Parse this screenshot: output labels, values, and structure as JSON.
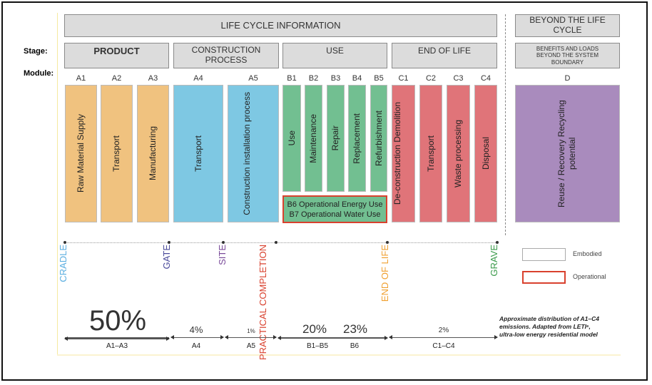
{
  "header": {
    "lifecycle": "LIFE CYCLE INFORMATION",
    "beyond": "BEYOND THE LIFE CYCLE"
  },
  "labels": {
    "stage": "Stage:",
    "module": "Module:"
  },
  "stages": [
    "PRODUCT",
    "CONSTRUCTION PROCESS",
    "USE",
    "END OF LIFE",
    "BENEFITS AND LOADS BEYOND THE SYSTEM BOUNDARY"
  ],
  "modules": [
    {
      "code": "A1",
      "name": "Raw Material Supply",
      "color": "#f0c27f"
    },
    {
      "code": "A2",
      "name": "Transport",
      "color": "#f0c27f"
    },
    {
      "code": "A3",
      "name": "Manufacturing",
      "color": "#f0c27f"
    },
    {
      "code": "A4",
      "name": "Transport",
      "color": "#7ec8e3"
    },
    {
      "code": "A5",
      "name": "Construction installation process",
      "color": "#7ec8e3"
    },
    {
      "code": "B1",
      "name": "Use",
      "color": "#72bf91"
    },
    {
      "code": "B2",
      "name": "Maintenance",
      "color": "#72bf91"
    },
    {
      "code": "B3",
      "name": "Repair",
      "color": "#72bf91"
    },
    {
      "code": "B4",
      "name": "Replacement",
      "color": "#72bf91"
    },
    {
      "code": "B5",
      "name": "Refurbishment",
      "color": "#72bf91"
    },
    {
      "code": "C1",
      "name": "De-construction Demolition",
      "color": "#e07479"
    },
    {
      "code": "C2",
      "name": "Transport",
      "color": "#e07479"
    },
    {
      "code": "C3",
      "name": "Waste processing",
      "color": "#e07479"
    },
    {
      "code": "C4",
      "name": "Disposal",
      "color": "#e07479"
    },
    {
      "code": "D",
      "name": "Reuse / Recovery Recycling potential",
      "color": "#a98bbd"
    }
  ],
  "operational_box": {
    "line1": "B6 Operational Energy Use",
    "line2": "B7 Operational Water Use"
  },
  "milestones": [
    {
      "label": "CRADLE",
      "color": "#5aaee0"
    },
    {
      "label": "GATE",
      "color": "#4a4a9a"
    },
    {
      "label": "SITE",
      "color": "#7a4a9a"
    },
    {
      "label": "PRACTICAL COMPLETION",
      "color": "#d9412e"
    },
    {
      "label": "END OF LIFE",
      "color": "#f0a030"
    },
    {
      "label": "GRAVE",
      "color": "#3a9a4a"
    }
  ],
  "distribution": [
    {
      "range": "A1–A3",
      "percent": "50%"
    },
    {
      "range": "A4",
      "percent": "4%"
    },
    {
      "range": "A5",
      "percent": "1%"
    },
    {
      "range": "B1–B5",
      "percent": "20%"
    },
    {
      "range": "B6",
      "percent": "23%"
    },
    {
      "range": "C1–C4",
      "percent": "2%"
    }
  ],
  "legend": {
    "embodied": "Embodied",
    "operational": "Operational"
  },
  "note": "Approximate distribution of A1–C4 emissions. Adapted from LETI⁶, ultra-low energy residential model"
}
